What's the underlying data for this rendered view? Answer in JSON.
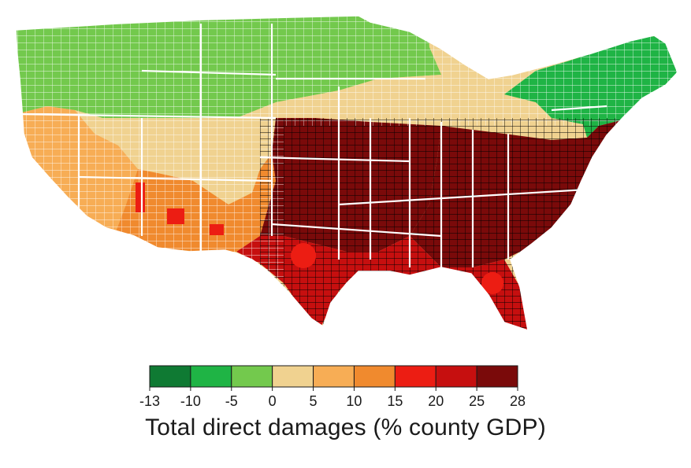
{
  "legend": {
    "title": "Total direct damages (% county GDP)",
    "tick_labels": [
      "-13",
      "-10",
      "-5",
      "0",
      "5",
      "10",
      "15",
      "20",
      "25",
      "28"
    ],
    "bins": [
      {
        "from": -13,
        "to": -10,
        "color": "#0f7a33"
      },
      {
        "from": -10,
        "to": -5,
        "color": "#1fb445"
      },
      {
        "from": -5,
        "to": 0,
        "color": "#73c94d"
      },
      {
        "from": 0,
        "to": 5,
        "color": "#f0d290"
      },
      {
        "from": 5,
        "to": 10,
        "color": "#f7ad55"
      },
      {
        "from": 10,
        "to": 15,
        "color": "#f08a2e"
      },
      {
        "from": 15,
        "to": 20,
        "color": "#ec1d13"
      },
      {
        "from": 20,
        "to": 25,
        "color": "#c60f0f"
      },
      {
        "from": 25,
        "to": 28,
        "color": "#7a0a0a"
      }
    ]
  },
  "map": {
    "region": "Contiguous United States, county-level choropleth",
    "regions": [
      {
        "name": "northwest",
        "value": -3
      },
      {
        "name": "northern-plains",
        "value": -4
      },
      {
        "name": "new-england",
        "value": -6
      },
      {
        "name": "great-lakes",
        "value": 1
      },
      {
        "name": "mountain-west",
        "value": 2
      },
      {
        "name": "california",
        "value": 7
      },
      {
        "name": "southwest",
        "value": 12
      },
      {
        "name": "central-plains",
        "value": 26
      },
      {
        "name": "southeast",
        "value": 27
      },
      {
        "name": "gulf-coast",
        "value": 22
      },
      {
        "name": "hotspots",
        "value": 17
      }
    ]
  }
}
